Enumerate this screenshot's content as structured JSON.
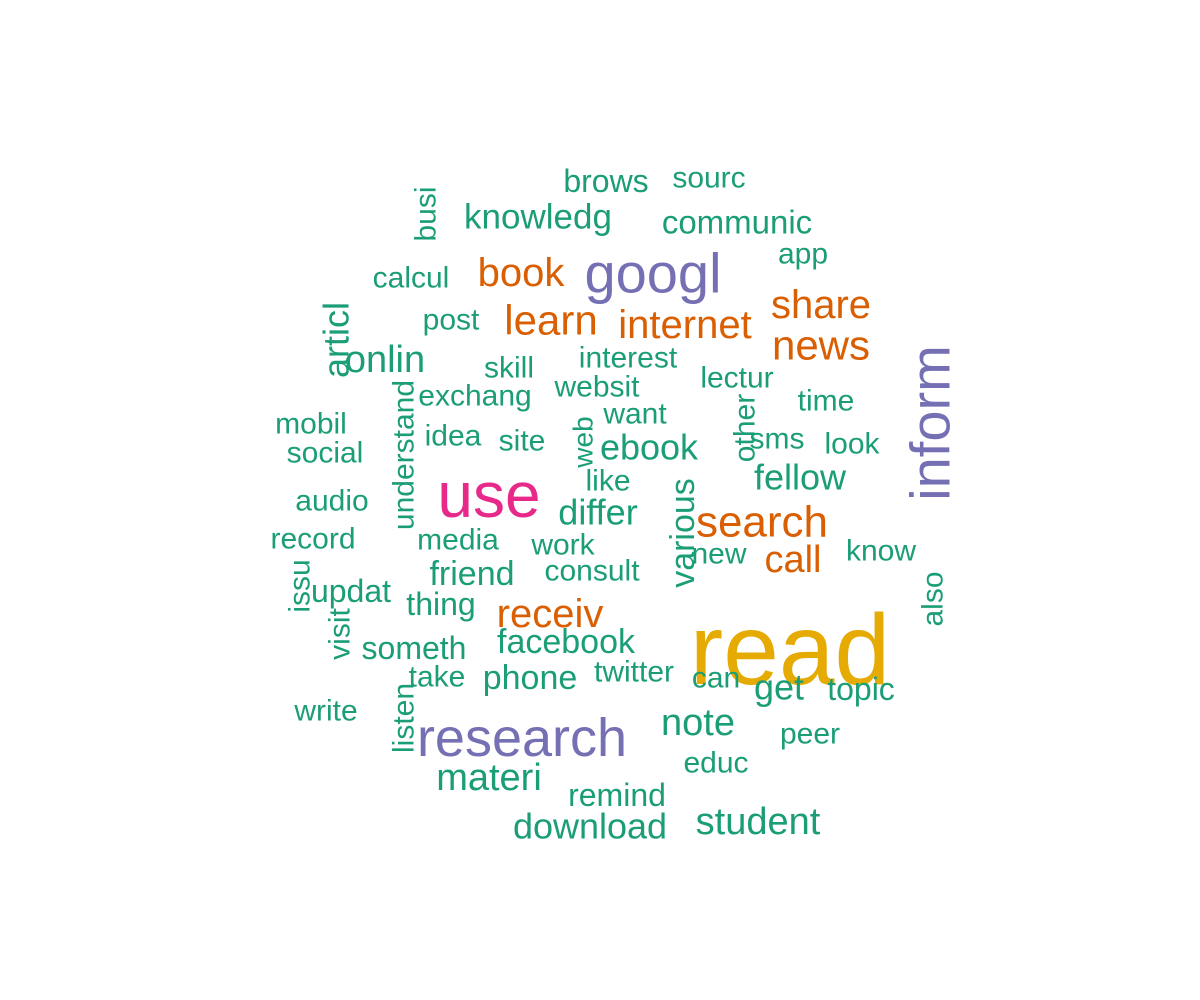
{
  "colors": {
    "tier1": "#e6ab02",
    "tier2": "#e7298a",
    "tier3": "#7570b3",
    "tier4": "#d95f02",
    "tier5": "#1b9e77"
  },
  "words": [
    {
      "text": "read",
      "tier": "tier1"
    },
    {
      "text": "use",
      "tier": "tier2"
    },
    {
      "text": "research",
      "tier": "tier3"
    },
    {
      "text": "googl",
      "tier": "tier3"
    },
    {
      "text": "inform",
      "tier": "tier3"
    },
    {
      "text": "search",
      "tier": "tier4"
    },
    {
      "text": "news",
      "tier": "tier4"
    },
    {
      "text": "share",
      "tier": "tier4"
    },
    {
      "text": "learn",
      "tier": "tier4"
    },
    {
      "text": "internet",
      "tier": "tier4"
    },
    {
      "text": "book",
      "tier": "tier4"
    },
    {
      "text": "receiv",
      "tier": "tier4"
    },
    {
      "text": "call",
      "tier": "tier4"
    },
    {
      "text": "brows",
      "tier": "tier5"
    },
    {
      "text": "sourc",
      "tier": "tier5"
    },
    {
      "text": "knowledg",
      "tier": "tier5"
    },
    {
      "text": "communic",
      "tier": "tier5"
    },
    {
      "text": "busi",
      "tier": "tier5"
    },
    {
      "text": "app",
      "tier": "tier5"
    },
    {
      "text": "calcul",
      "tier": "tier5"
    },
    {
      "text": "post",
      "tier": "tier5"
    },
    {
      "text": "articl",
      "tier": "tier5"
    },
    {
      "text": "onlin",
      "tier": "tier5"
    },
    {
      "text": "skill",
      "tier": "tier5"
    },
    {
      "text": "interest",
      "tier": "tier5"
    },
    {
      "text": "lectur",
      "tier": "tier5"
    },
    {
      "text": "websit",
      "tier": "tier5"
    },
    {
      "text": "exchang",
      "tier": "tier5"
    },
    {
      "text": "time",
      "tier": "tier5"
    },
    {
      "text": "mobil",
      "tier": "tier5"
    },
    {
      "text": "want",
      "tier": "tier5"
    },
    {
      "text": "other",
      "tier": "tier5"
    },
    {
      "text": "understand",
      "tier": "tier5"
    },
    {
      "text": "idea",
      "tier": "tier5"
    },
    {
      "text": "site",
      "tier": "tier5"
    },
    {
      "text": "web",
      "tier": "tier5"
    },
    {
      "text": "ebook",
      "tier": "tier5"
    },
    {
      "text": "sms",
      "tier": "tier5"
    },
    {
      "text": "look",
      "tier": "tier5"
    },
    {
      "text": "social",
      "tier": "tier5"
    },
    {
      "text": "like",
      "tier": "tier5"
    },
    {
      "text": "fellow",
      "tier": "tier5"
    },
    {
      "text": "audio",
      "tier": "tier5"
    },
    {
      "text": "differ",
      "tier": "tier5"
    },
    {
      "text": "various",
      "tier": "tier5"
    },
    {
      "text": "record",
      "tier": "tier5"
    },
    {
      "text": "media",
      "tier": "tier5"
    },
    {
      "text": "work",
      "tier": "tier5"
    },
    {
      "text": "new",
      "tier": "tier5"
    },
    {
      "text": "know",
      "tier": "tier5"
    },
    {
      "text": "friend",
      "tier": "tier5"
    },
    {
      "text": "consult",
      "tier": "tier5"
    },
    {
      "text": "issu",
      "tier": "tier5"
    },
    {
      "text": "updat",
      "tier": "tier5"
    },
    {
      "text": "thing",
      "tier": "tier5"
    },
    {
      "text": "also",
      "tier": "tier5"
    },
    {
      "text": "visit",
      "tier": "tier5"
    },
    {
      "text": "someth",
      "tier": "tier5"
    },
    {
      "text": "facebook",
      "tier": "tier5"
    },
    {
      "text": "take",
      "tier": "tier5"
    },
    {
      "text": "phone",
      "tier": "tier5"
    },
    {
      "text": "twitter",
      "tier": "tier5"
    },
    {
      "text": "can",
      "tier": "tier5"
    },
    {
      "text": "get",
      "tier": "tier5"
    },
    {
      "text": "topic",
      "tier": "tier5"
    },
    {
      "text": "write",
      "tier": "tier5"
    },
    {
      "text": "listen",
      "tier": "tier5"
    },
    {
      "text": "note",
      "tier": "tier5"
    },
    {
      "text": "peer",
      "tier": "tier5"
    },
    {
      "text": "materi",
      "tier": "tier5"
    },
    {
      "text": "educ",
      "tier": "tier5"
    },
    {
      "text": "remind",
      "tier": "tier5"
    },
    {
      "text": "download",
      "tier": "tier5"
    },
    {
      "text": "student",
      "tier": "tier5"
    }
  ]
}
